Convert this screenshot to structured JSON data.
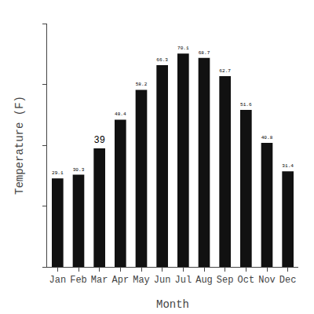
{
  "chart_data": {
    "type": "bar",
    "categories": [
      "Jan",
      "Feb",
      "Mar",
      "Apr",
      "May",
      "Jun",
      "Jul",
      "Aug",
      "Sep",
      "Oct",
      "Nov",
      "Dec"
    ],
    "values": [
      29.1,
      30.3,
      39.0,
      48.4,
      58.2,
      66.3,
      70.1,
      68.7,
      62.7,
      51.6,
      40.8,
      31.4
    ],
    "color": "#111111",
    "xlabel": "Month",
    "ylabel": "Temperature (F)",
    "ylim": [
      0,
      80
    ],
    "yticks": [
      0,
      20,
      40,
      60,
      80
    ],
    "grid": false,
    "data_labels": true,
    "tick_labels": "x"
  }
}
